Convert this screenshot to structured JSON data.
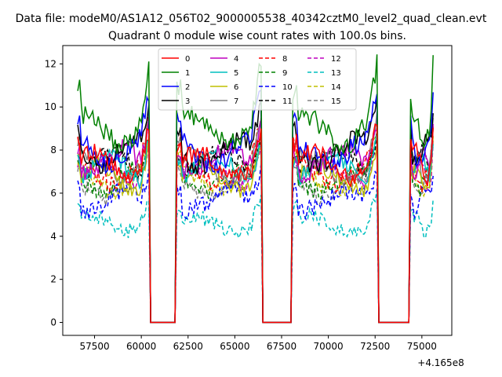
{
  "chart_data": {
    "type": "line",
    "suptitle": "Data file: modeM0/AS1A12_056T02_9000005538_40342cztM0_level2_quad_clean.evt",
    "title": "Quadrant 0 module wise count rates with 100.0s bins.",
    "xlabel": "",
    "ylabel": "",
    "x_offset_label": "+4.165e8",
    "xlim": [
      55800,
      76600
    ],
    "ylim": [
      -0.6,
      12.85
    ],
    "xticks": [
      57500,
      60000,
      62500,
      65000,
      67500,
      70000,
      72500,
      75000
    ],
    "xtick_labels": [
      "57500",
      "60000",
      "62500",
      "65000",
      "67500",
      "70000",
      "72500",
      "75000"
    ],
    "yticks": [
      0,
      2,
      4,
      6,
      8,
      10,
      12
    ],
    "ytick_labels": [
      "0",
      "2",
      "4",
      "6",
      "8",
      "10",
      "12"
    ],
    "grid": false,
    "legend_placement": "top-center",
    "legend_columns": 4,
    "time_bin_s": 100,
    "orbit_segments": [
      {
        "x_start": 56600,
        "x_end": 60400
      },
      {
        "x_start": 61900,
        "x_end": 66400
      },
      {
        "x_start": 68100,
        "x_end": 72600
      },
      {
        "x_start": 74400,
        "x_end": 75600
      }
    ],
    "gaps": [
      {
        "x_start": 60500,
        "x_end": 61900
      },
      {
        "x_start": 66600,
        "x_end": 68100
      },
      {
        "x_start": 72700,
        "x_end": 74300
      }
    ],
    "series": [
      {
        "name": "0",
        "color": "#ff0000",
        "dash": "solid",
        "level": 7.3,
        "amp": 0.45
      },
      {
        "name": "1",
        "color": "#008000",
        "dash": "solid",
        "level": 9.0,
        "amp": 0.55
      },
      {
        "name": "2",
        "color": "#0000ff",
        "dash": "solid",
        "level": 8.0,
        "amp": 0.5
      },
      {
        "name": "3",
        "color": "#000000",
        "dash": "solid",
        "level": 7.9,
        "amp": 0.45
      },
      {
        "name": "4",
        "color": "#bf00bf",
        "dash": "solid",
        "level": 7.5,
        "amp": 0.45
      },
      {
        "name": "5",
        "color": "#00bfbf",
        "dash": "solid",
        "level": 7.1,
        "amp": 0.4
      },
      {
        "name": "6",
        "color": "#bfbf00",
        "dash": "solid",
        "level": 6.7,
        "amp": 0.4
      },
      {
        "name": "7",
        "color": "#808080",
        "dash": "solid",
        "level": 7.2,
        "amp": 0.4
      },
      {
        "name": "8",
        "color": "#ff0000",
        "dash": "dashed",
        "level": 7.0,
        "amp": 0.4
      },
      {
        "name": "9",
        "color": "#008000",
        "dash": "dashed",
        "level": 6.6,
        "amp": 0.4
      },
      {
        "name": "10",
        "color": "#0000ff",
        "dash": "dashed",
        "level": 5.7,
        "amp": 0.45
      },
      {
        "name": "11",
        "color": "#000000",
        "dash": "dashed",
        "level": 7.4,
        "amp": 0.4
      },
      {
        "name": "12",
        "color": "#bf00bf",
        "dash": "dashed",
        "level": 6.9,
        "amp": 0.4
      },
      {
        "name": "13",
        "color": "#00bfbf",
        "dash": "dashed",
        "level": 4.6,
        "amp": 0.35
      },
      {
        "name": "14",
        "color": "#bfbf00",
        "dash": "dashed",
        "level": 6.6,
        "amp": 0.4
      },
      {
        "name": "15",
        "color": "#808080",
        "dash": "dashed",
        "level": 6.3,
        "amp": 0.4
      }
    ]
  }
}
